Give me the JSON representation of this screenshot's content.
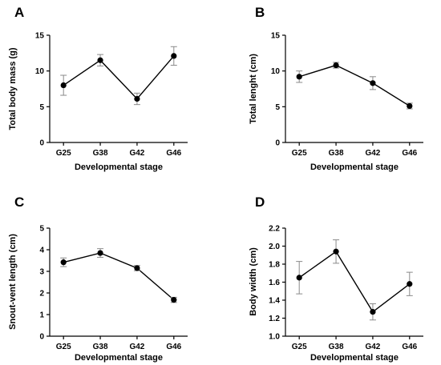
{
  "chart_data": [
    {
      "panel": "A",
      "type": "line",
      "categories": [
        "G25",
        "G38",
        "G42",
        "G46"
      ],
      "values": [
        8.0,
        11.5,
        6.1,
        12.1
      ],
      "errors": [
        1.4,
        0.8,
        0.8,
        1.3
      ],
      "xlabel": "Developmental stage",
      "ylabel": "Total body mass (g)",
      "ylim": [
        0,
        15
      ],
      "yticks": [
        0,
        5,
        10,
        15
      ],
      "ytick_labels": [
        "0",
        "5",
        "10",
        "15"
      ]
    },
    {
      "panel": "B",
      "type": "line",
      "categories": [
        "G25",
        "G38",
        "G42",
        "G46"
      ],
      "values": [
        9.2,
        10.8,
        8.3,
        5.1
      ],
      "errors": [
        0.8,
        0.4,
        0.9,
        0.4
      ],
      "xlabel": "Developmental stage",
      "ylabel": "Total lenght (cm)",
      "ylim": [
        0,
        15
      ],
      "yticks": [
        0,
        5,
        10,
        15
      ],
      "ytick_labels": [
        "0",
        "5",
        "10",
        "15"
      ]
    },
    {
      "panel": "C",
      "type": "line",
      "categories": [
        "G25",
        "G38",
        "G42",
        "G46"
      ],
      "values": [
        3.42,
        3.85,
        3.15,
        1.68
      ],
      "errors": [
        0.2,
        0.2,
        0.12,
        0.12
      ],
      "xlabel": "Developmental stage",
      "ylabel": "Snout-vent length (cm)",
      "ylim": [
        0,
        5
      ],
      "yticks": [
        0,
        1,
        2,
        3,
        4,
        5
      ],
      "ytick_labels": [
        "0",
        "1",
        "2",
        "3",
        "4",
        "5"
      ]
    },
    {
      "panel": "D",
      "type": "line",
      "categories": [
        "G25",
        "G38",
        "G42",
        "G46"
      ],
      "values": [
        1.65,
        1.94,
        1.27,
        1.58
      ],
      "errors": [
        0.18,
        0.13,
        0.09,
        0.13
      ],
      "xlabel": "Developmental stage",
      "ylabel": "Body width (cm)",
      "ylim": [
        1.0,
        2.2
      ],
      "yticks": [
        1.0,
        1.2,
        1.4,
        1.6,
        1.8,
        2.0,
        2.2
      ],
      "ytick_labels": [
        "1.0",
        "1.2",
        "1.4",
        "1.6",
        "1.8",
        "2.0",
        "2.2"
      ]
    }
  ]
}
